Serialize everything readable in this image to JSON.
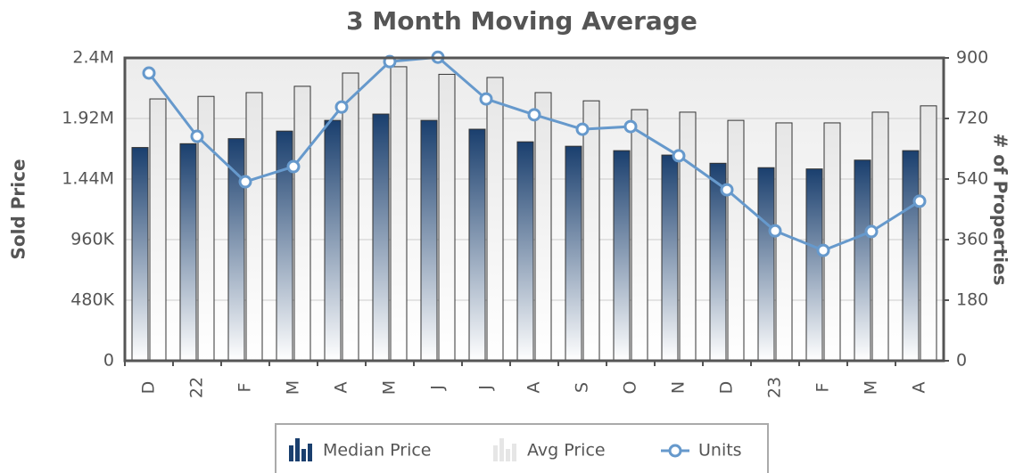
{
  "chart_data": {
    "type": "bar-line",
    "title": "3 Month Moving Average",
    "y_label": "Sold Price",
    "y2_label": "# of Properties",
    "categories": [
      "D",
      "22",
      "F",
      "M",
      "A",
      "M",
      "J",
      "J",
      "A",
      "S",
      "O",
      "N",
      "D",
      "23",
      "F",
      "M",
      "A"
    ],
    "series": [
      {
        "name": "Median Price",
        "type": "bar",
        "color": "#1a3f6e",
        "values": [
          1690000,
          1720000,
          1760000,
          1820000,
          1905000,
          1955000,
          1905000,
          1835000,
          1735000,
          1700000,
          1665000,
          1630000,
          1565000,
          1530000,
          1520000,
          1590000,
          1665000
        ]
      },
      {
        "name": "Avg Price",
        "type": "bar",
        "color": "#e6e6e6",
        "values": [
          2075000,
          2095000,
          2125000,
          2175000,
          2280000,
          2330000,
          2270000,
          2245000,
          2125000,
          2060000,
          1990000,
          1970000,
          1905000,
          1885000,
          1885000,
          1970000,
          2020000
        ]
      },
      {
        "name": "Units",
        "type": "line",
        "axis": "y2",
        "color": "#6699cc",
        "values": [
          855,
          667,
          532,
          577,
          754,
          889,
          902,
          778,
          731,
          688,
          696,
          609,
          508,
          386,
          328,
          384,
          474
        ]
      }
    ],
    "ylim": [
      0,
      2400000
    ],
    "yticks": [
      0,
      {
        "value": 480000,
        "label": "480K"
      },
      {
        "value": 960000,
        "label": "960K"
      },
      {
        "value": 1440000,
        "label": "1.44M"
      },
      {
        "value": 1920000,
        "label": "1.92M"
      },
      {
        "value": 2400000,
        "label": "2.4M"
      }
    ],
    "y2lim": [
      0,
      900
    ],
    "y2ticks": [
      0,
      180,
      360,
      540,
      720,
      900
    ],
    "grid": true
  }
}
